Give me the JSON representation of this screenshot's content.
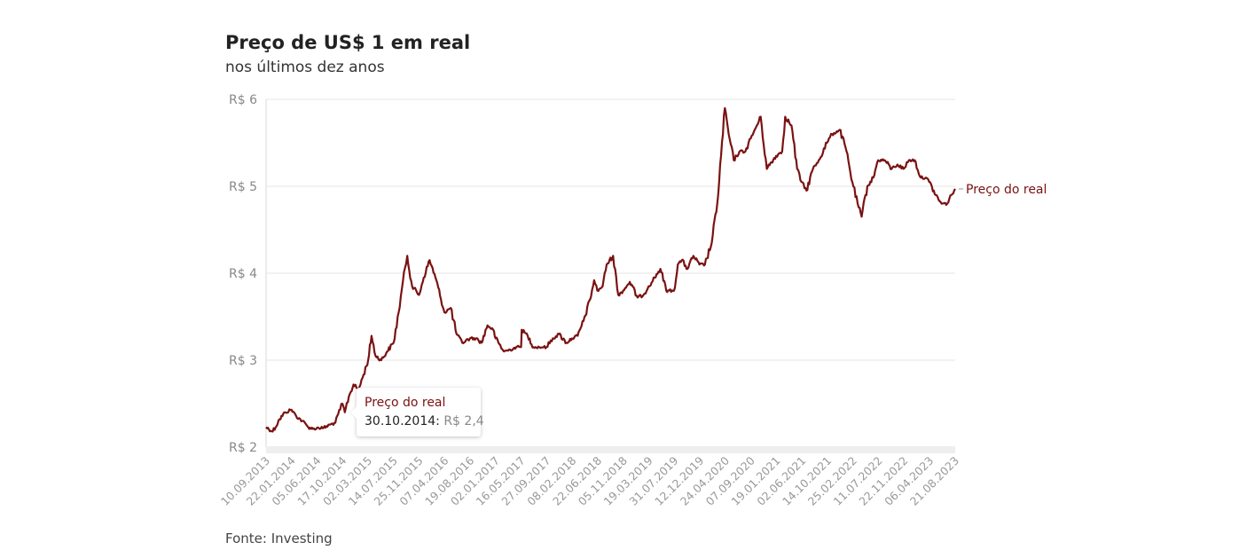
{
  "title": "Preço de US$ 1 em real",
  "subtitle": "nos últimos dez anos",
  "source": "Fonte: Investing",
  "colors": {
    "line": "#7a1212",
    "grid": "#e6e6e6",
    "tick": "#999999"
  },
  "tooltip": {
    "series": "Preço do real",
    "date": "30.10.2014:",
    "value": "R$ 2,4"
  },
  "chart_data": {
    "type": "line",
    "title": "Preço de US$ 1 em real",
    "subtitle": "nos últimos dez anos",
    "ylim": [
      2,
      6
    ],
    "yticks": [
      {
        "value": 6,
        "label": "R$ 6"
      },
      {
        "value": 5,
        "label": "R$ 5"
      },
      {
        "value": 4,
        "label": "R$ 4"
      },
      {
        "value": 3,
        "label": "R$ 3"
      },
      {
        "value": 2,
        "label": "R$ 2"
      }
    ],
    "xlim": [
      "2013-09-10",
      "2023-08-21"
    ],
    "xticks": [
      "10.09.2013",
      "22.01.2014",
      "05.06.2014",
      "17.10.2014",
      "02.03.2015",
      "14.07.2015",
      "25.11.2015",
      "07.04.2016",
      "19.08.2016",
      "02.01.2017",
      "16.05.2017",
      "27.09.2017",
      "08.02.2018",
      "22.06.2018",
      "05.11.2018",
      "19.03.2019",
      "31.07.2019",
      "12.12.2019",
      "24.04.2020",
      "07.09.2020",
      "19.01.2021",
      "02.06.2021",
      "14.10.2021",
      "25.02.2022",
      "11.07.2022",
      "22.11.2022",
      "06.04.2023",
      "21.08.2023"
    ],
    "grid": true,
    "legend": "end-of-line label",
    "series": [
      {
        "name": "Preço do real",
        "x": [
          "2013-09-10",
          "2013-10-15",
          "2013-11-20",
          "2013-12-20",
          "2014-01-22",
          "2014-02-15",
          "2014-03-20",
          "2014-04-20",
          "2014-05-15",
          "2014-06-05",
          "2014-07-10",
          "2014-08-15",
          "2014-09-10",
          "2014-09-25",
          "2014-10-17",
          "2014-10-30",
          "2014-11-20",
          "2014-12-15",
          "2015-01-10",
          "2015-02-01",
          "2015-03-02",
          "2015-03-20",
          "2015-04-10",
          "2015-05-10",
          "2015-06-10",
          "2015-07-14",
          "2015-08-10",
          "2015-09-01",
          "2015-09-24",
          "2015-10-20",
          "2015-11-25",
          "2015-12-20",
          "2016-01-20",
          "2016-02-20",
          "2016-03-20",
          "2016-04-07",
          "2016-05-10",
          "2016-06-10",
          "2016-07-10",
          "2016-08-19",
          "2016-09-20",
          "2016-10-20",
          "2016-11-20",
          "2016-12-20",
          "2017-01-02",
          "2017-02-15",
          "2017-03-20",
          "2017-04-20",
          "2017-05-16",
          "2017-05-19",
          "2017-06-20",
          "2017-07-20",
          "2017-08-20",
          "2017-09-27",
          "2017-10-30",
          "2017-12-01",
          "2018-01-10",
          "2018-02-08",
          "2018-03-10",
          "2018-04-10",
          "2018-05-15",
          "2018-06-05",
          "2018-06-22",
          "2018-07-20",
          "2018-08-10",
          "2018-09-13",
          "2018-10-10",
          "2018-11-05",
          "2018-12-10",
          "2019-01-20",
          "2019-02-20",
          "2019-03-19",
          "2019-04-20",
          "2019-05-20",
          "2019-06-20",
          "2019-07-31",
          "2019-08-20",
          "2019-09-10",
          "2019-10-10",
          "2019-11-10",
          "2019-12-12",
          "2020-01-10",
          "2020-02-15",
          "2020-03-15",
          "2020-04-24",
          "2020-05-14",
          "2020-06-10",
          "2020-07-10",
          "2020-08-10",
          "2020-09-07",
          "2020-10-10",
          "2020-10-30",
          "2020-12-01",
          "2021-01-19",
          "2021-02-20",
          "2021-03-08",
          "2021-04-10",
          "2021-05-10",
          "2021-06-02",
          "2021-06-28",
          "2021-08-01",
          "2021-09-01",
          "2021-10-14",
          "2021-11-10",
          "2021-12-20",
          "2022-01-20",
          "2022-02-25",
          "2022-03-25",
          "2022-04-15",
          "2022-05-15",
          "2022-06-15",
          "2022-07-11",
          "2022-08-15",
          "2022-09-20",
          "2022-10-20",
          "2022-11-22",
          "2022-12-20",
          "2023-01-20",
          "2023-02-20",
          "2023-03-20",
          "2023-04-06",
          "2023-05-10",
          "2023-06-10",
          "2023-07-10",
          "2023-08-01",
          "2023-08-21"
        ],
        "y": [
          2.23,
          2.18,
          2.32,
          2.4,
          2.43,
          2.36,
          2.3,
          2.23,
          2.21,
          2.22,
          2.22,
          2.26,
          2.28,
          2.38,
          2.5,
          2.4,
          2.58,
          2.72,
          2.66,
          2.8,
          3.0,
          3.28,
          3.05,
          3.0,
          3.1,
          3.2,
          3.55,
          3.9,
          4.2,
          3.85,
          3.75,
          3.95,
          4.15,
          3.95,
          3.7,
          3.55,
          3.6,
          3.3,
          3.2,
          3.25,
          3.25,
          3.2,
          3.4,
          3.35,
          3.25,
          3.1,
          3.12,
          3.15,
          3.15,
          3.35,
          3.28,
          3.15,
          3.15,
          3.15,
          3.25,
          3.3,
          3.2,
          3.25,
          3.28,
          3.45,
          3.7,
          3.92,
          3.8,
          3.85,
          4.1,
          4.2,
          3.75,
          3.8,
          3.9,
          3.72,
          3.75,
          3.85,
          3.95,
          4.05,
          3.8,
          3.8,
          4.1,
          4.15,
          4.05,
          4.2,
          4.1,
          4.1,
          4.35,
          4.8,
          5.9,
          5.6,
          5.3,
          5.4,
          5.4,
          5.55,
          5.7,
          5.8,
          5.2,
          5.35,
          5.4,
          5.8,
          5.7,
          5.2,
          5.05,
          4.95,
          5.2,
          5.3,
          5.5,
          5.6,
          5.65,
          5.45,
          5.05,
          4.8,
          4.65,
          5.0,
          5.1,
          5.3,
          5.3,
          5.2,
          5.25,
          5.2,
          5.3,
          5.3,
          5.1,
          5.1,
          5.05,
          4.9,
          4.8,
          4.8,
          4.9,
          4.97
        ]
      }
    ]
  }
}
